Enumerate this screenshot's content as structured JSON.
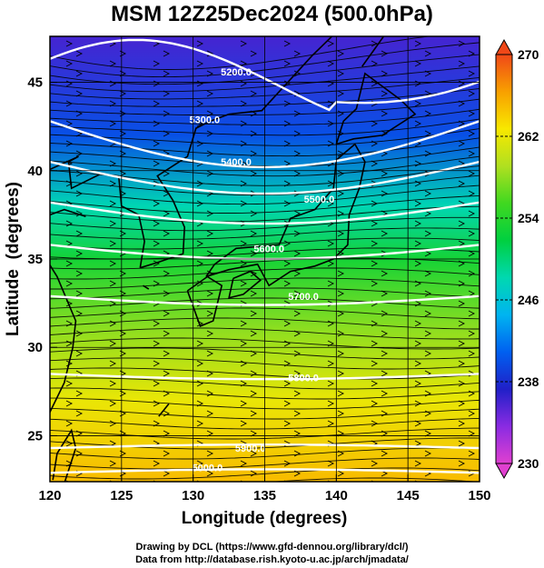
{
  "chart_data": {
    "type": "heatmap",
    "title": "MSM 12Z25Dec2024 (500.0hPa)",
    "xlabel": "Longitude (degrees)",
    "ylabel": "Latitude  (degrees)",
    "xlim": [
      120,
      150
    ],
    "ylim": [
      22.4,
      47.6
    ],
    "x_ticks": [
      120,
      125,
      130,
      135,
      140,
      145,
      150
    ],
    "y_ticks": [
      25,
      30,
      35,
      40,
      45
    ],
    "colorbar": {
      "min": 230,
      "max": 270,
      "ticks": [
        230,
        238,
        246,
        254,
        262,
        270
      ],
      "palette": [
        "#e040d0",
        "#8a2be2",
        "#2020c8",
        "#0060f0",
        "#00b4f0",
        "#00d8b0",
        "#00d040",
        "#40d820",
        "#b0e020",
        "#f8e800",
        "#f8a000",
        "#f04818"
      ]
    },
    "temperature_field_description_levels": [
      {
        "lat": 47.6,
        "value": 236
      },
      {
        "lat": 42,
        "value": 240
      },
      {
        "lat": 38,
        "value": 248
      },
      {
        "lat": 35,
        "value": 253
      },
      {
        "lat": 31,
        "value": 258
      },
      {
        "lat": 27,
        "value": 262
      },
      {
        "lat": 22.4,
        "value": 265
      }
    ],
    "contour_series": [
      {
        "value": 5000.0,
        "label": "5000.0"
      },
      {
        "value": 5200.0,
        "label": "5200.0"
      },
      {
        "value": 5300.0,
        "label": "5300.0"
      },
      {
        "value": 5400.0,
        "label": "5400.0"
      },
      {
        "value": 5500.0,
        "label": "5500.0"
      },
      {
        "value": 5600.0,
        "label": "5600.0"
      },
      {
        "value": 5700.0,
        "label": "5700.0"
      },
      {
        "value": 5800.0,
        "label": "5800.0"
      },
      {
        "value": 5900.0,
        "label": "5900.0"
      }
    ],
    "grid": true
  },
  "footer": {
    "line1": "Drawing by DCL (https://www.gfd-dennou.org/library/dcl/)",
    "line2": "Data from http://database.rish.kyoto-u.ac.jp/arch/jmadata/"
  }
}
